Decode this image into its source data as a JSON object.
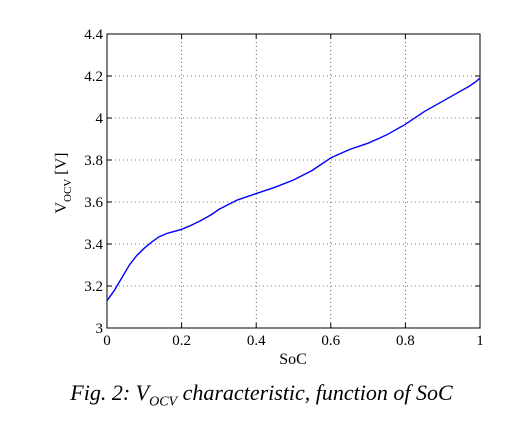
{
  "chart_data": {
    "type": "line",
    "xlabel": "SoC",
    "ylabel": {
      "base": "V",
      "sub": "OCV",
      "unit": " [V]"
    },
    "xlim": [
      0,
      1
    ],
    "ylim": [
      3,
      4.4
    ],
    "grid": true,
    "x_ticks": [
      0,
      0.2,
      0.4,
      0.6,
      0.8,
      1
    ],
    "y_ticks": [
      3,
      3.2,
      3.4,
      3.6,
      3.8,
      4,
      4.2,
      4.4
    ],
    "x_tick_labels": [
      "0",
      "0.2",
      "0.4",
      "0.6",
      "0.8",
      "1"
    ],
    "y_tick_labels": [
      "3",
      "3.2",
      "3.4",
      "3.6",
      "3.8",
      "4",
      "4.2",
      "4.4"
    ],
    "line_color": "#0000ff",
    "series": [
      {
        "x": [
          0,
          0.02,
          0.04,
          0.06,
          0.08,
          0.1,
          0.12,
          0.14,
          0.16,
          0.18,
          0.2,
          0.22,
          0.25,
          0.28,
          0.3,
          0.35,
          0.4,
          0.45,
          0.5,
          0.55,
          0.6,
          0.65,
          0.7,
          0.75,
          0.8,
          0.85,
          0.9,
          0.95,
          0.97,
          0.99,
          1.0
        ],
        "y": [
          3.13,
          3.18,
          3.24,
          3.3,
          3.345,
          3.38,
          3.41,
          3.435,
          3.45,
          3.46,
          3.47,
          3.485,
          3.51,
          3.54,
          3.565,
          3.61,
          3.64,
          3.67,
          3.705,
          3.75,
          3.81,
          3.85,
          3.88,
          3.92,
          3.97,
          4.03,
          4.08,
          4.13,
          4.15,
          4.175,
          4.19
        ]
      }
    ]
  },
  "caption": {
    "prefix": "Fig. 2: V",
    "sub": "OCV",
    "suffix": " characteristic, function of SoC"
  }
}
